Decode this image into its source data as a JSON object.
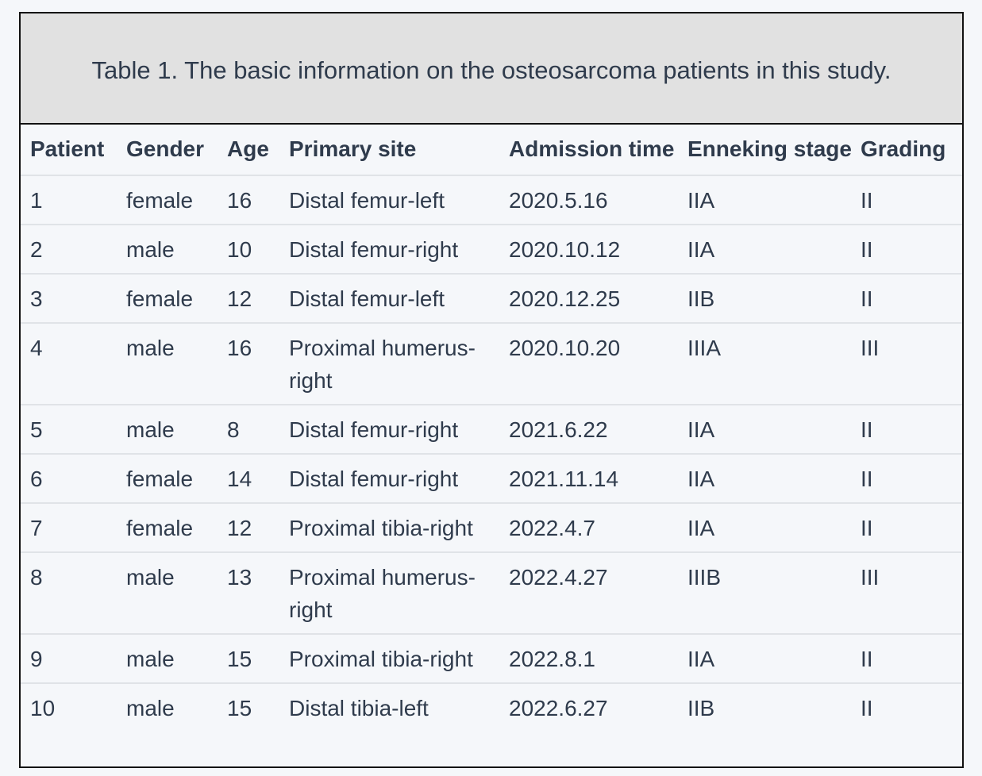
{
  "caption": "Table 1. The basic information on the osteosarcoma patients in this study.",
  "headers": [
    "Patient",
    "Gender",
    "Age",
    "Primary site",
    "Admission time",
    "Enneking stage",
    "Grading"
  ],
  "rows": [
    [
      "1",
      "female",
      "16",
      "Distal femur-left",
      "2020.5.16",
      "IIA",
      "II"
    ],
    [
      "2",
      "male",
      "10",
      "Distal femur-right",
      "2020.10.12",
      "IIA",
      "II"
    ],
    [
      "3",
      "female",
      "12",
      "Distal femur-left",
      "2020.12.25",
      "IIB",
      "II"
    ],
    [
      "4",
      "male",
      "16",
      "Proximal humerus-right",
      "2020.10.20",
      "IIIA",
      "III"
    ],
    [
      "5",
      "male",
      "8",
      "Distal femur-right",
      "2021.6.22",
      "IIA",
      "II"
    ],
    [
      "6",
      "female",
      "14",
      "Distal femur-right",
      "2021.11.14",
      "IIA",
      "II"
    ],
    [
      "7",
      "female",
      "12",
      "Proximal tibia-right",
      "2022.4.7",
      "IIA",
      "II"
    ],
    [
      "8",
      "male",
      "13",
      "Proximal humerus-right",
      "2022.4.27",
      "IIIB",
      "III"
    ],
    [
      "9",
      "male",
      "15",
      "Proximal tibia-right",
      "2022.8.1",
      "IIA",
      "II"
    ],
    [
      "10",
      "male",
      "15",
      "Distal tibia-left",
      "2022.6.27",
      "IIB",
      "II"
    ]
  ]
}
